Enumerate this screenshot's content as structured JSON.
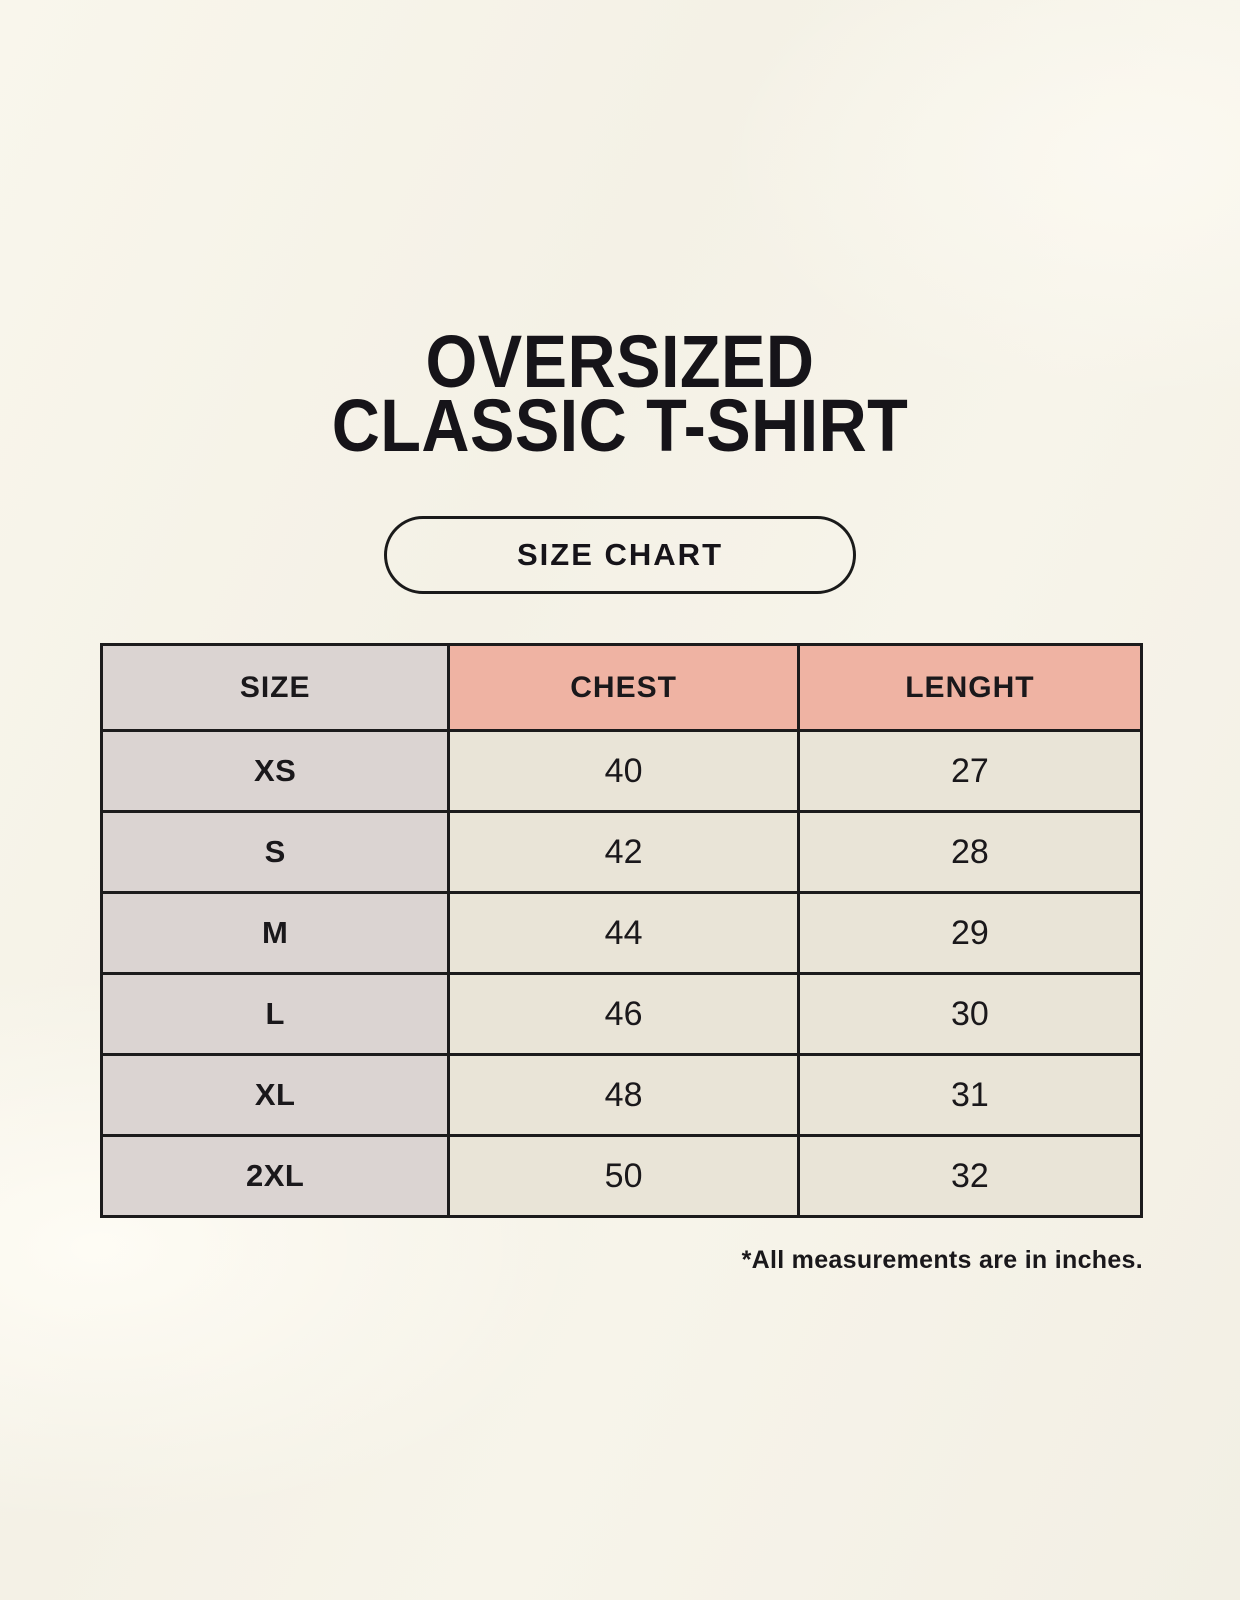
{
  "page": {
    "title_line1": "OVERSIZED",
    "title_line2": "CLASSIC T-SHIRT",
    "button_label": "SIZE CHART",
    "footnote": "*All measurements are in inches."
  },
  "table": {
    "columns": [
      "SIZE",
      "CHEST",
      "LENGHT"
    ],
    "rows": [
      {
        "size": "XS",
        "chest": "40",
        "length": "27"
      },
      {
        "size": "S",
        "chest": "42",
        "length": "28"
      },
      {
        "size": "M",
        "chest": "44",
        "length": "29"
      },
      {
        "size": "L",
        "chest": "46",
        "length": "30"
      },
      {
        "size": "XL",
        "chest": "48",
        "length": "31"
      },
      {
        "size": "2XL",
        "chest": "50",
        "length": "32"
      }
    ]
  },
  "colors": {
    "background": "#f5f2e8",
    "size_column_bg": "#dbd4d2",
    "header_accent_bg": "#efb3a3",
    "value_cell_bg": "#e9e4d7",
    "border": "#1c1b1c",
    "text": "#1a181b"
  },
  "chart_data": {
    "type": "table",
    "title": "OVERSIZED CLASSIC T-SHIRT",
    "subtitle": "SIZE CHART",
    "columns": [
      "SIZE",
      "CHEST",
      "LENGHT"
    ],
    "rows": [
      [
        "XS",
        "40",
        "27"
      ],
      [
        "S",
        "42",
        "28"
      ],
      [
        "M",
        "44",
        "29"
      ],
      [
        "L",
        "46",
        "30"
      ],
      [
        "XL",
        "48",
        "31"
      ],
      [
        "2XL",
        "50",
        "32"
      ]
    ],
    "note": "*All measurements are in inches.",
    "units": "inches"
  }
}
